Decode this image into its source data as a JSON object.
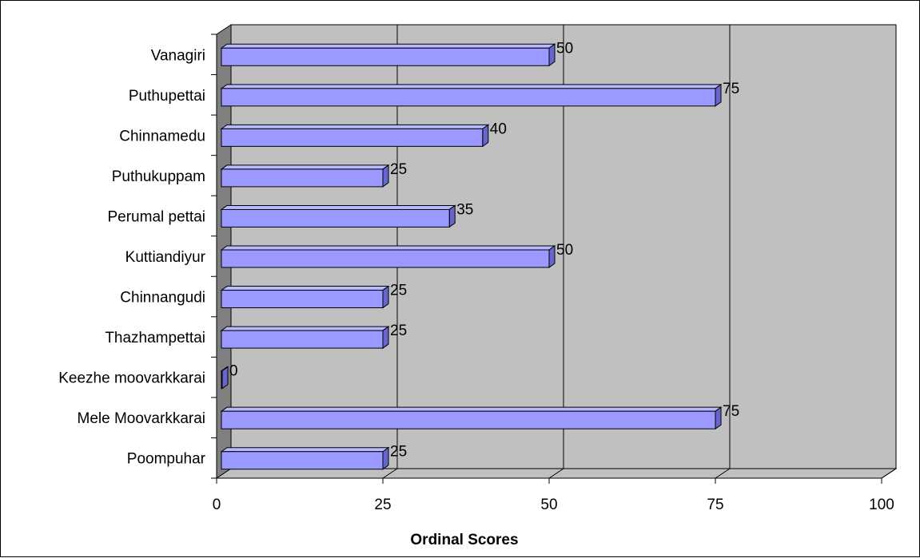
{
  "colors": {
    "bar_front": "#9999ff",
    "bar_top": "#b8b8ff",
    "bar_side": "#6666cc",
    "plot_back": "#c0c0c0",
    "plot_floor": "#c0c0c0",
    "plot_wall": "#808080"
  },
  "chart_data": {
    "type": "bar",
    "orientation": "horizontal",
    "style": "3d-clustered-bar",
    "title": "",
    "xlabel": "Ordinal Scores",
    "ylabel": "",
    "xlim": [
      0,
      100
    ],
    "xticks": [
      0,
      25,
      50,
      75,
      100
    ],
    "grid": true,
    "legend": "none",
    "categories": [
      "Vanagiri",
      "Puthupettai",
      "Chinnamedu",
      "Puthukuppam",
      "Perumal pettai",
      "Kuttiandiyur",
      "Chinnangudi",
      "Thazhampettai",
      "Keezhe moovarkkarai",
      "Mele Moovarkkarai",
      "Poompuhar"
    ],
    "values": [
      50,
      75,
      40,
      25,
      35,
      50,
      25,
      25,
      0,
      75,
      25
    ]
  }
}
